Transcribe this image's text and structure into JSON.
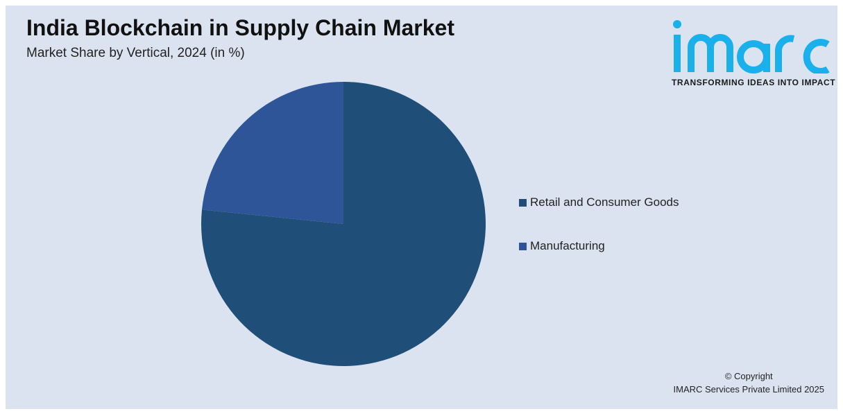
{
  "header": {
    "title": "India Blockchain in Supply Chain Market",
    "subtitle": "Market Share by Vertical, 2024 (in %)"
  },
  "logo": {
    "wordmark": "imarc",
    "tagline": "TRANSFORMING IDEAS INTO IMPACT",
    "color": "#1ab0ec"
  },
  "chart_data": {
    "type": "pie",
    "title": "India Blockchain in Supply Chain Market",
    "subtitle": "Market Share by Vertical, 2024 (in %)",
    "categories": [
      "Retail and Consumer Goods",
      "Manufacturing"
    ],
    "values": [
      76.6,
      23.4
    ],
    "colors": [
      "#1f4e79",
      "#2e5597"
    ],
    "legend_position": "right",
    "start_angle": "12 o'clock",
    "direction": "clockwise"
  },
  "footer": {
    "copyright_line1": "© Copyright",
    "copyright_line2": "IMARC Services Private Limited 2025"
  }
}
